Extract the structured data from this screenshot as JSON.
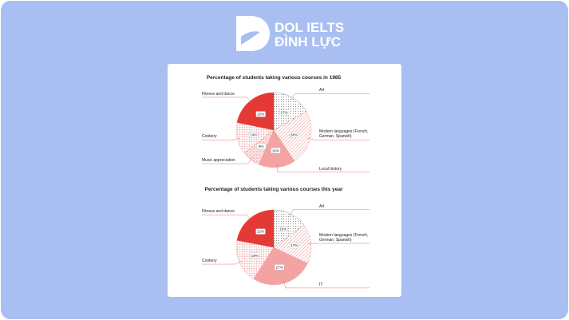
{
  "header": {
    "brand_line1": "DOL IELTS",
    "brand_line2": "ĐÌNH LỰC"
  },
  "chart_data": [
    {
      "type": "pie",
      "title": "Percentage of students taking various courses in 1985",
      "categories": [
        "Art",
        "Modern languages (French, German, Spanish)",
        "Local history",
        "Music appreciation",
        "Cookery",
        "Fitness and dance"
      ],
      "values": [
        17,
        24,
        16,
        8,
        14,
        22
      ],
      "value_labels": [
        "17%",
        "24%",
        "16%",
        "8%",
        "14%",
        "22%"
      ],
      "colors": [
        "#555555",
        "#e57373",
        "#f4a3a3",
        "#e57373",
        "#e57373",
        "#e53935"
      ],
      "patterns": [
        "dots",
        "diagonal",
        "solid",
        "cross",
        "grid",
        "solid"
      ]
    },
    {
      "type": "pie",
      "title": "Percentage of students taking various courses this year",
      "categories": [
        "Art",
        "Modern languages (French, German, Spanish)",
        "IT",
        "Cookery",
        "Fitness and dance"
      ],
      "values": [
        15,
        17,
        27,
        19,
        22
      ],
      "value_labels": [
        "15%",
        "17%",
        "27%",
        "19%",
        "22%"
      ],
      "colors": [
        "#555555",
        "#e57373",
        "#f4a3a3",
        "#e57373",
        "#e53935"
      ],
      "patterns": [
        "dots",
        "diagonal",
        "solid",
        "grid",
        "solid"
      ]
    }
  ]
}
